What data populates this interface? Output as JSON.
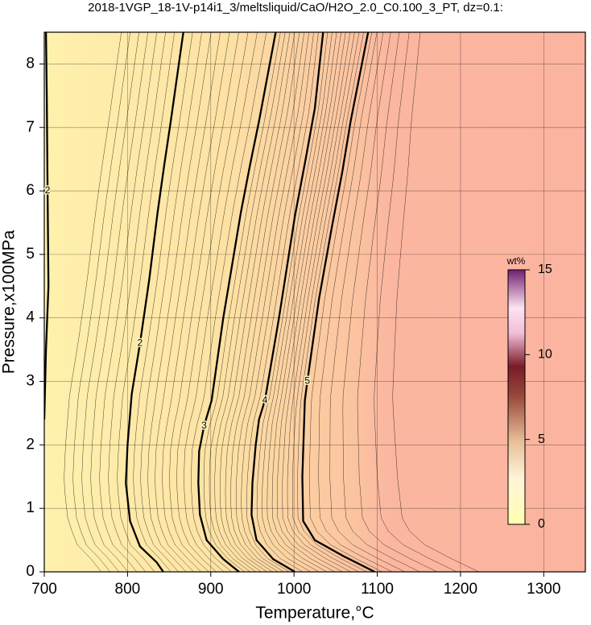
{
  "chart_data": {
    "type": "contour",
    "title": "2018-1VGP_18-1V-p14i1_3/meltsliquid/CaO/H2O_2.0_C0.100_3_PT, dz=0.1:",
    "xlabel": "Temperature,°C",
    "ylabel": "Pressure,x100MPa",
    "xlim": [
      700,
      1350
    ],
    "ylim": [
      0,
      8.5
    ],
    "xticks": [
      700,
      800,
      900,
      1000,
      1100,
      1200,
      1300
    ],
    "yticks": [
      0,
      1,
      2,
      3,
      4,
      5,
      6,
      7,
      8
    ],
    "grid": true,
    "contours": [
      {
        "level": 2,
        "x": [
          700,
          702,
          705,
          704,
          703,
          702
        ],
        "y": [
          2.4,
          3.5,
          4.5,
          6.0,
          7.5,
          8.5
        ]
      },
      {
        "level": 2,
        "x": [
          843,
          835,
          815,
          803,
          798,
          800,
          805,
          815,
          826,
          836,
          844,
          852,
          867
        ],
        "y": [
          0,
          0.15,
          0.4,
          0.8,
          1.4,
          2.0,
          2.8,
          3.6,
          4.6,
          5.65,
          6.4,
          7.1,
          8.5
        ]
      },
      {
        "level": 3,
        "x": [
          934,
          915,
          895,
          887,
          885,
          886,
          892,
          901,
          915,
          936,
          947,
          958,
          978
        ],
        "y": [
          0,
          0.2,
          0.5,
          0.9,
          1.4,
          1.9,
          2.3,
          2.7,
          4.0,
          5.65,
          6.4,
          7.1,
          8.5
        ]
      },
      {
        "level": 4,
        "x": [
          1001,
          975,
          955,
          949,
          950,
          954,
          958,
          965,
          982,
          1001,
          1014,
          1025,
          1035
        ],
        "y": [
          0,
          0.2,
          0.5,
          0.9,
          1.4,
          2.0,
          2.4,
          2.7,
          4.0,
          5.6,
          6.5,
          7.3,
          8.5
        ]
      },
      {
        "level": 5,
        "x": [
          1097,
          1059,
          1025,
          1011,
          1010,
          1013,
          1016,
          1030,
          1045,
          1058,
          1068,
          1089
        ],
        "y": [
          0,
          0.25,
          0.5,
          0.8,
          1.5,
          2.7,
          3.0,
          4.3,
          5.4,
          6.3,
          7.1,
          8.5
        ]
      }
    ],
    "colorbar": {
      "label": "wt%",
      "lim": [
        0,
        15
      ],
      "ticks": [
        0,
        5,
        10,
        15
      ]
    }
  }
}
